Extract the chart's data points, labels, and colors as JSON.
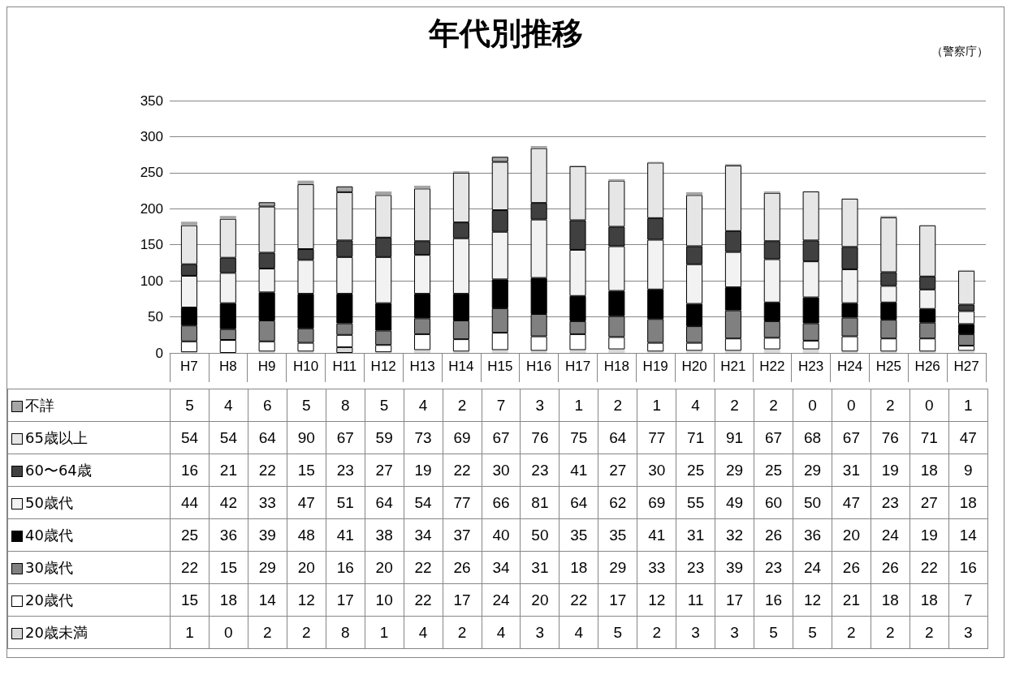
{
  "chart_data": {
    "type": "bar",
    "title": "年代別推移",
    "annotations": [
      "（警察庁）"
    ],
    "stacked": true,
    "data_labels": true,
    "legend": "left",
    "grid": "y",
    "categories": [
      "H7",
      "H8",
      "H9",
      "H10",
      "H11",
      "H12",
      "H13",
      "H14",
      "H15",
      "H16",
      "H17",
      "H18",
      "H19",
      "H20",
      "H21",
      "H22",
      "H23",
      "H24",
      "H25",
      "H26",
      "H27"
    ],
    "ylim": [
      0,
      350
    ],
    "yticks": [
      0,
      50,
      100,
      150,
      200,
      250,
      300,
      350
    ],
    "series": [
      {
        "name": "20歳未満",
        "color": "#d9d9d9",
        "values": [
          1,
          0,
          2,
          2,
          8,
          1,
          4,
          2,
          4,
          3,
          4,
          5,
          2,
          3,
          3,
          5,
          5,
          2,
          2,
          2,
          3
        ]
      },
      {
        "name": "20歳代",
        "color": "#ffffff",
        "values": [
          15,
          18,
          14,
          12,
          17,
          10,
          22,
          17,
          24,
          20,
          22,
          17,
          12,
          11,
          17,
          16,
          12,
          21,
          18,
          18,
          7
        ]
      },
      {
        "name": "30歳代",
        "color": "#808080",
        "values": [
          22,
          15,
          29,
          20,
          16,
          20,
          22,
          26,
          34,
          31,
          18,
          29,
          33,
          23,
          39,
          23,
          24,
          26,
          26,
          22,
          16
        ]
      },
      {
        "name": "40歳代",
        "color": "#000000",
        "values": [
          25,
          36,
          39,
          48,
          41,
          38,
          34,
          37,
          40,
          50,
          35,
          35,
          41,
          31,
          32,
          26,
          36,
          20,
          24,
          19,
          14
        ]
      },
      {
        "name": "50歳代",
        "color": "#f2f2f2",
        "values": [
          44,
          42,
          33,
          47,
          51,
          64,
          54,
          77,
          66,
          81,
          64,
          62,
          69,
          55,
          49,
          60,
          50,
          47,
          23,
          27,
          18
        ]
      },
      {
        "name": "60〜64歳",
        "color": "#404040",
        "values": [
          16,
          21,
          22,
          15,
          23,
          27,
          19,
          22,
          30,
          23,
          41,
          27,
          30,
          25,
          29,
          25,
          29,
          31,
          19,
          18,
          9
        ]
      },
      {
        "name": "65歳以上",
        "color": "#e6e6e6",
        "values": [
          54,
          54,
          64,
          90,
          67,
          59,
          73,
          69,
          67,
          76,
          75,
          64,
          77,
          71,
          91,
          67,
          68,
          67,
          76,
          71,
          47
        ]
      },
      {
        "name": "不詳",
        "color": "#a6a6a6",
        "values": [
          5,
          4,
          6,
          5,
          8,
          5,
          4,
          2,
          7,
          3,
          1,
          2,
          1,
          4,
          2,
          2,
          0,
          0,
          2,
          0,
          1
        ]
      }
    ]
  }
}
